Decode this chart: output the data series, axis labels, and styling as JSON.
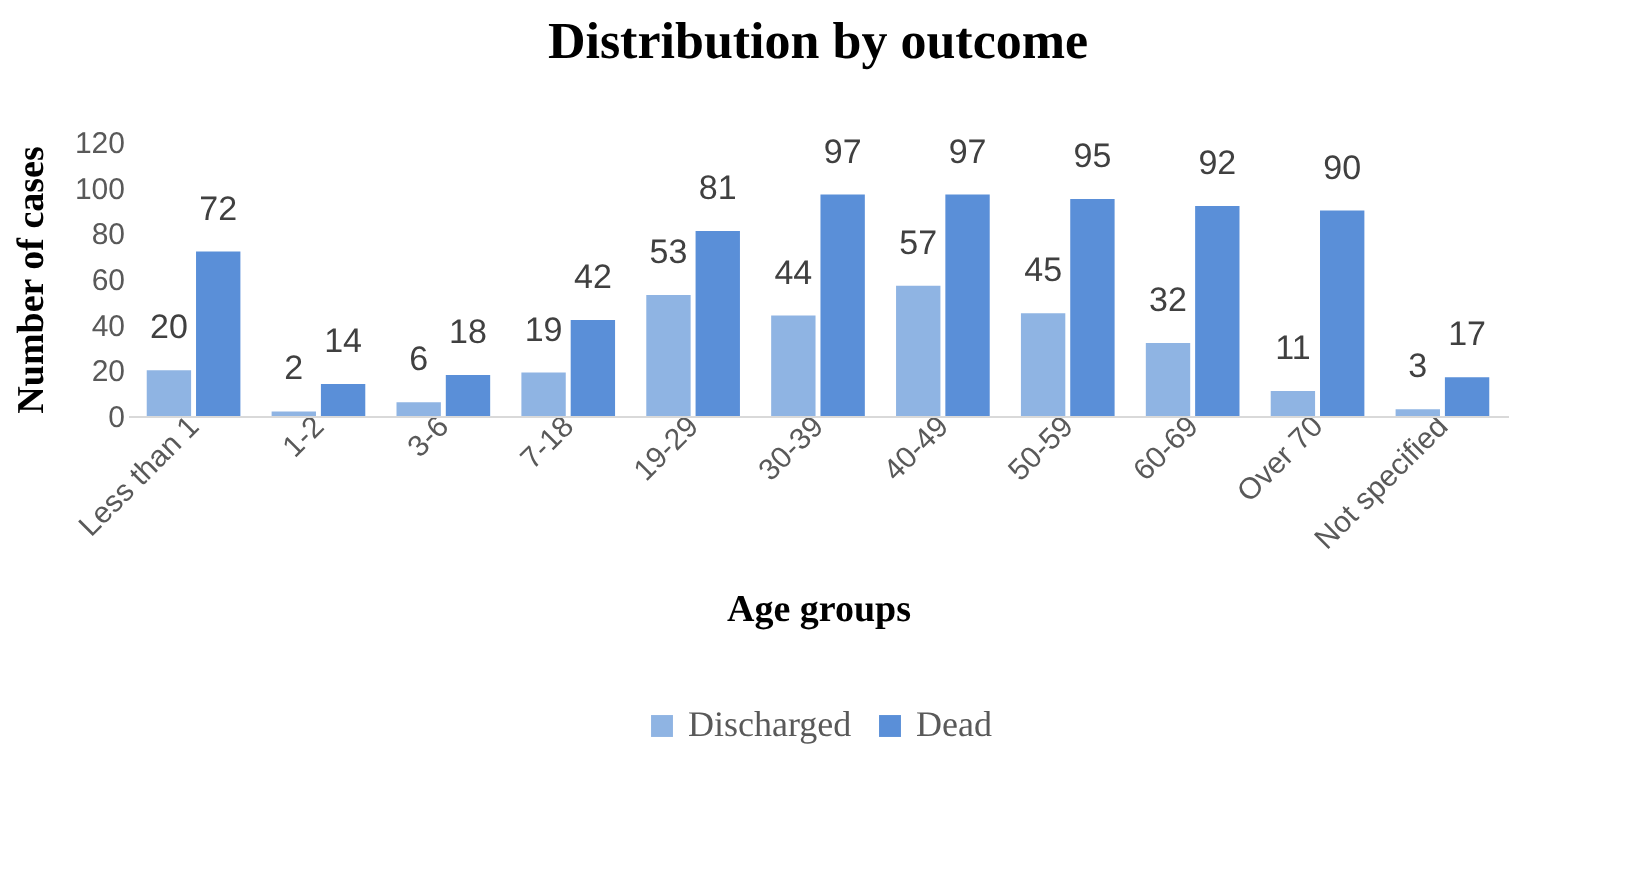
{
  "chart_data": {
    "type": "bar",
    "title": "Distribution by outcome",
    "xlabel": "Age groups",
    "ylabel": "Number of cases",
    "categories": [
      "Less than 1",
      "1-2",
      "3-6",
      "7-18",
      "19-29",
      "30-39",
      "40-49",
      "50-59",
      "60-69",
      "Over 70",
      "Not specified"
    ],
    "series": [
      {
        "name": "Discharged",
        "color": "#8fb4e3",
        "values": [
          20,
          2,
          6,
          19,
          53,
          44,
          57,
          45,
          32,
          11,
          3
        ]
      },
      {
        "name": "Dead",
        "color": "#5a8fd8",
        "values": [
          72,
          14,
          18,
          42,
          81,
          97,
          97,
          95,
          92,
          90,
          17
        ]
      }
    ],
    "ylim": [
      0,
      120
    ],
    "yticks": [
      0,
      20,
      40,
      60,
      80,
      100,
      120
    ],
    "grid": false,
    "legend": "bottom",
    "data_labels": true
  }
}
